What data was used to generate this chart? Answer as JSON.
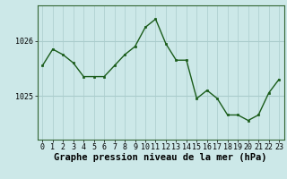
{
  "x": [
    0,
    1,
    2,
    3,
    4,
    5,
    6,
    7,
    8,
    9,
    10,
    11,
    12,
    13,
    14,
    15,
    16,
    17,
    18,
    19,
    20,
    21,
    22,
    23
  ],
  "y": [
    1025.55,
    1025.85,
    1025.75,
    1025.6,
    1025.35,
    1025.35,
    1025.35,
    1025.55,
    1025.75,
    1025.9,
    1026.25,
    1026.4,
    1025.95,
    1025.65,
    1025.65,
    1024.95,
    1025.1,
    1024.95,
    1024.65,
    1024.65,
    1024.55,
    1024.65,
    1025.05,
    1025.3
  ],
  "line_color": "#1a5c1a",
  "marker_color": "#1a5c1a",
  "bg_color": "#cce8e8",
  "grid_color_v": "#aacccc",
  "grid_color_h": "#aacccc",
  "xlabel": "Graphe pression niveau de la mer (hPa)",
  "xlabel_fontsize": 7.5,
  "yticks": [
    1025,
    1026
  ],
  "ylim": [
    1024.2,
    1026.65
  ],
  "xlim": [
    -0.5,
    23.5
  ],
  "xtick_labels": [
    "0",
    "1",
    "2",
    "3",
    "4",
    "5",
    "6",
    "7",
    "8",
    "9",
    "10",
    "11",
    "12",
    "13",
    "14",
    "15",
    "16",
    "17",
    "18",
    "19",
    "20",
    "21",
    "22",
    "23"
  ],
  "tick_fontsize": 6.0,
  "border_color": "#336633"
}
